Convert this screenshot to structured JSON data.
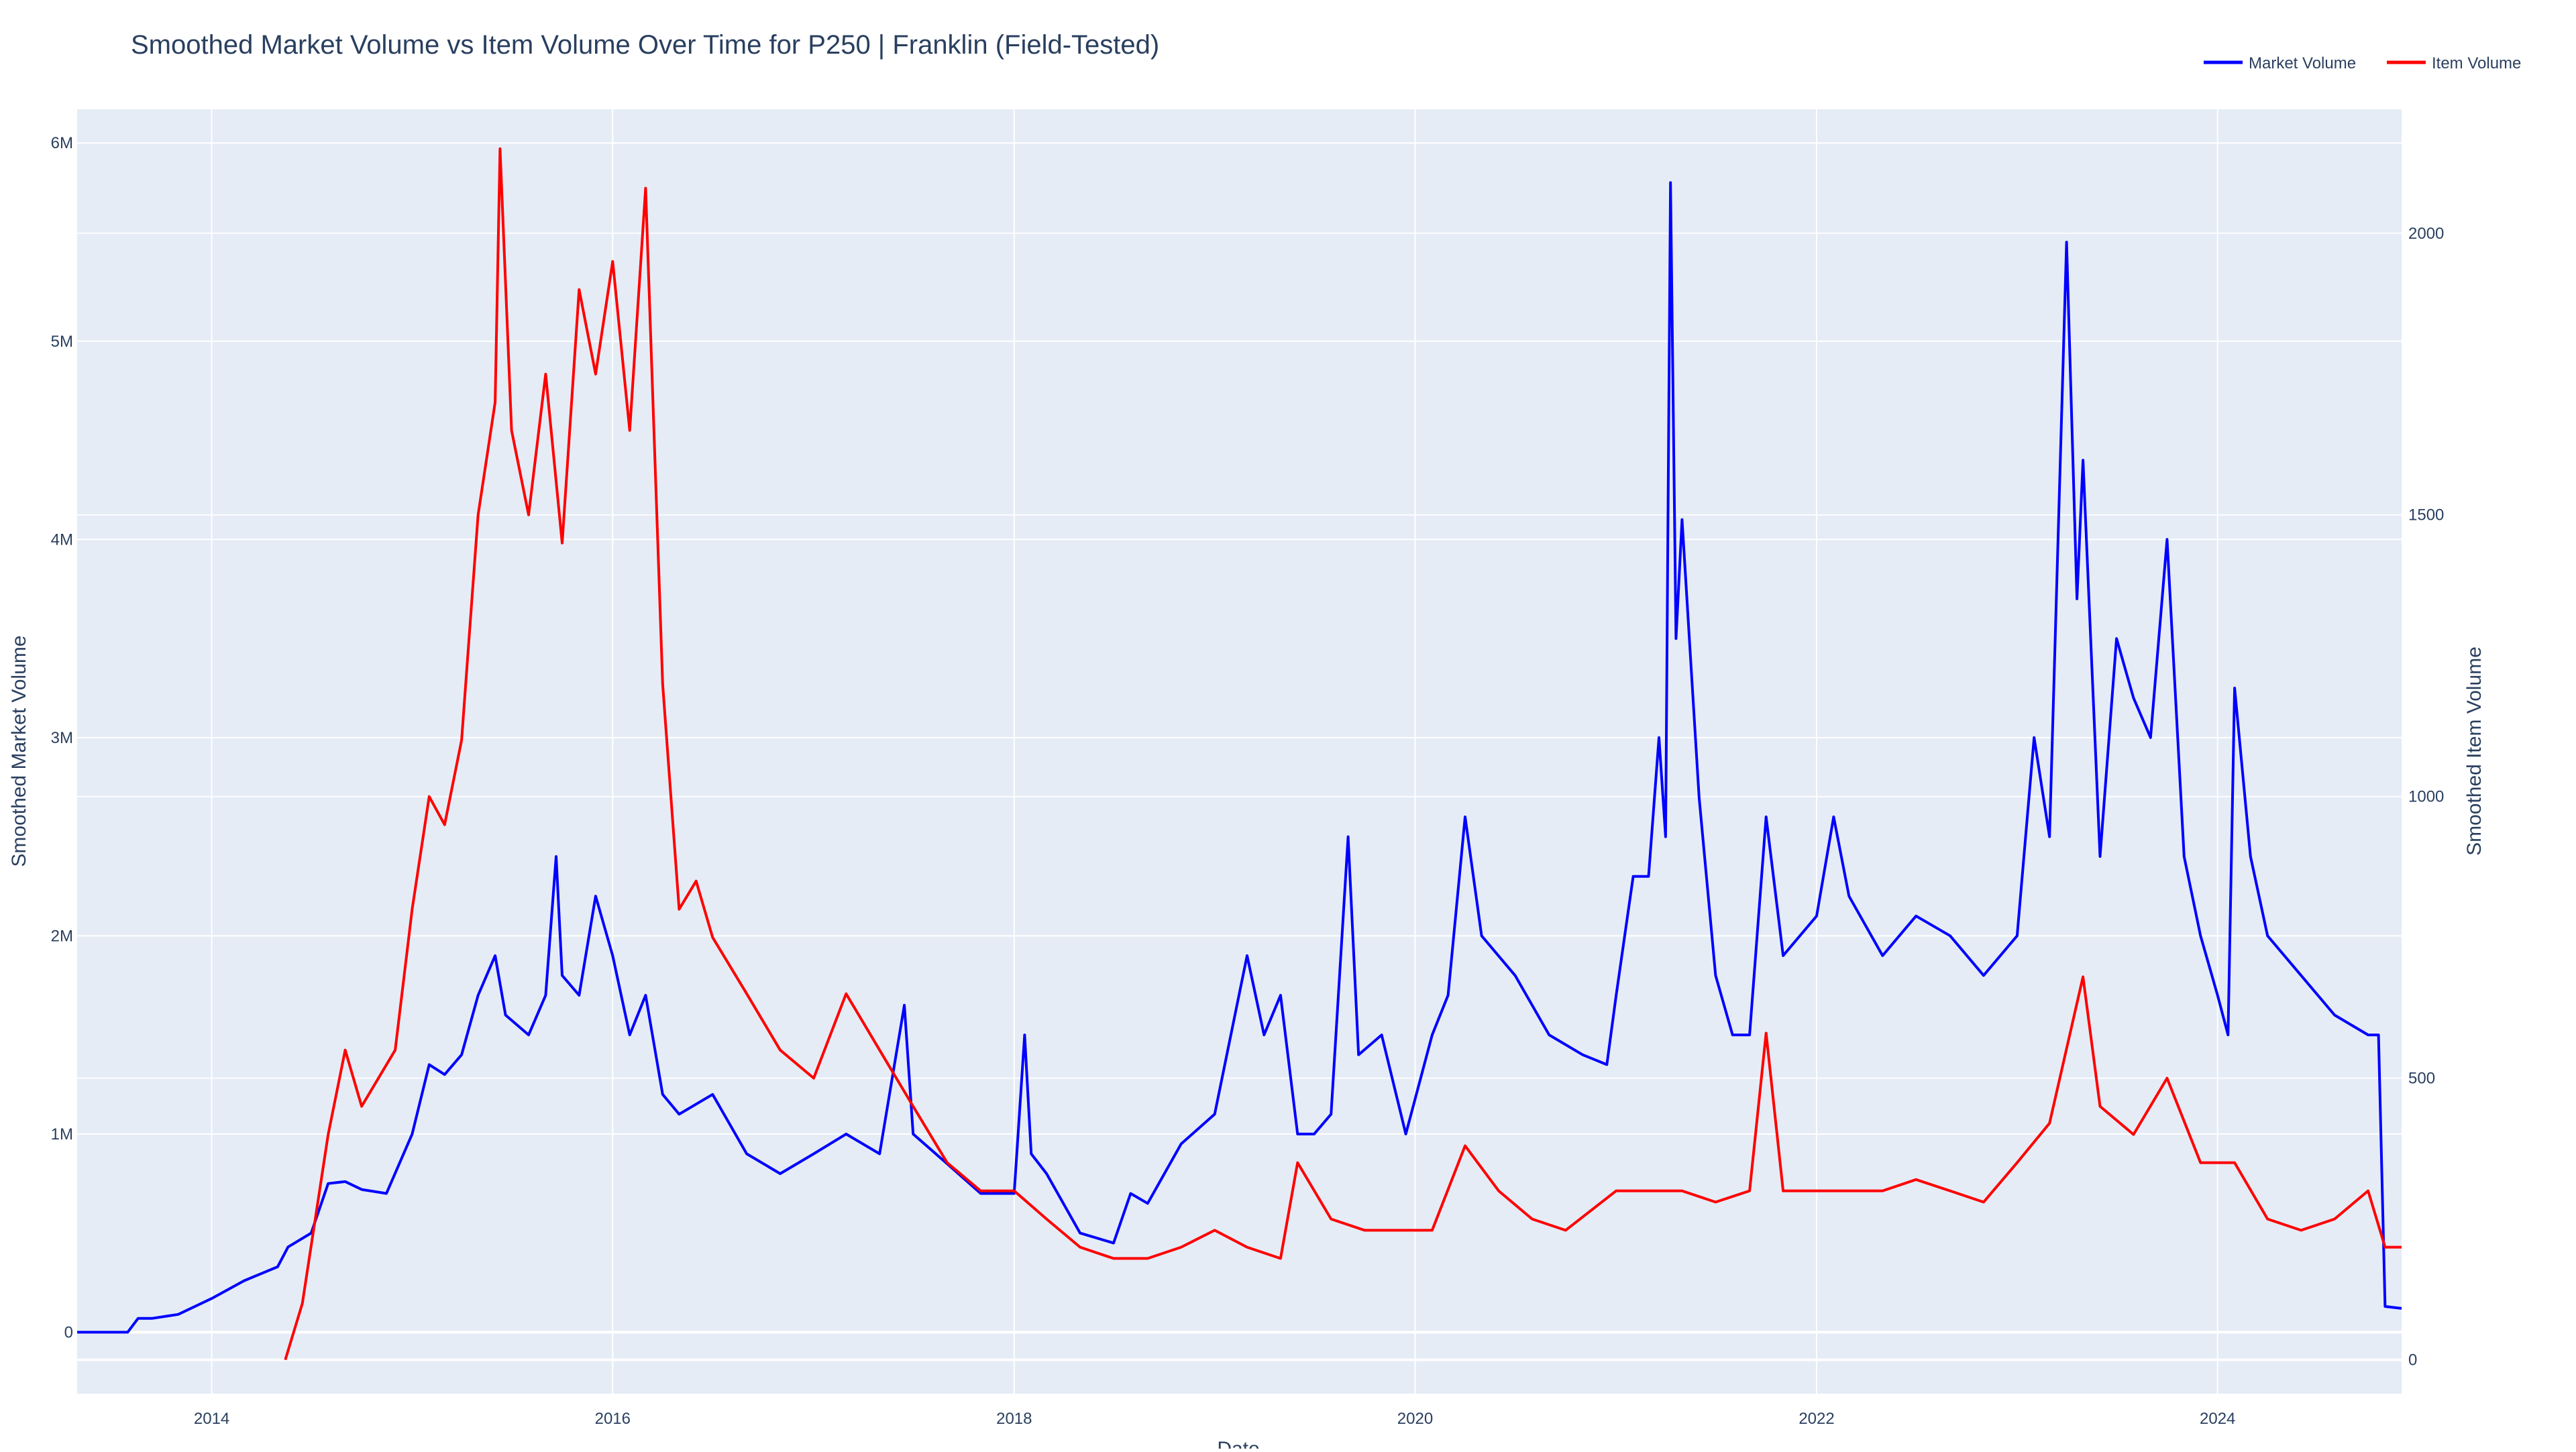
{
  "chart_data": {
    "type": "line",
    "title": "Smoothed Market Volume vs Item Volume Over Time for P250 | Franklin (Field-Tested)",
    "xlabel": "Date",
    "ylabel": "Smoothed Market Volume",
    "y2label": "Smoothed Item Volume",
    "x_ticks": [
      "2014",
      "2016",
      "2018",
      "2020",
      "2022",
      "2024"
    ],
    "y_ticks": [
      "0",
      "1M",
      "2M",
      "3M",
      "4M",
      "5M",
      "6M"
    ],
    "y2_ticks": [
      "0",
      "500",
      "1000",
      "1500",
      "2000"
    ],
    "xlim": [
      "2013-05-01",
      "2024-12-01"
    ],
    "ylim": [
      -310000,
      6170000
    ],
    "y2lim": [
      -60,
      2220
    ],
    "grid": true,
    "legend_position": "top-right",
    "background_color": "#e5ecf6",
    "series": [
      {
        "name": "Market Volume",
        "axis": "left",
        "color": "#0000ff",
        "points": [
          [
            "2013-05-01",
            0
          ],
          [
            "2013-08-01",
            0
          ],
          [
            "2013-08-20",
            70000
          ],
          [
            "2013-09-15",
            70000
          ],
          [
            "2013-11-01",
            90000
          ],
          [
            "2014-01-01",
            170000
          ],
          [
            "2014-03-01",
            260000
          ],
          [
            "2014-05-01",
            330000
          ],
          [
            "2014-05-20",
            430000
          ],
          [
            "2014-07-01",
            500000
          ],
          [
            "2014-08-01",
            750000
          ],
          [
            "2014-09-01",
            760000
          ],
          [
            "2014-10-01",
            720000
          ],
          [
            "2014-11-15",
            700000
          ],
          [
            "2015-01-01",
            1000000
          ],
          [
            "2015-02-01",
            1350000
          ],
          [
            "2015-03-01",
            1300000
          ],
          [
            "2015-04-01",
            1400000
          ],
          [
            "2015-05-01",
            1700000
          ],
          [
            "2015-06-01",
            1900000
          ],
          [
            "2015-06-20",
            1600000
          ],
          [
            "2015-08-01",
            1500000
          ],
          [
            "2015-09-01",
            1700000
          ],
          [
            "2015-09-20",
            2400000
          ],
          [
            "2015-10-01",
            1800000
          ],
          [
            "2015-11-01",
            1700000
          ],
          [
            "2015-12-01",
            2200000
          ],
          [
            "2016-01-01",
            1900000
          ],
          [
            "2016-02-01",
            1500000
          ],
          [
            "2016-03-01",
            1700000
          ],
          [
            "2016-04-01",
            1200000
          ],
          [
            "2016-05-01",
            1100000
          ],
          [
            "2016-07-01",
            1200000
          ],
          [
            "2016-09-01",
            900000
          ],
          [
            "2016-11-01",
            800000
          ],
          [
            "2017-01-01",
            900000
          ],
          [
            "2017-03-01",
            1000000
          ],
          [
            "2017-05-01",
            900000
          ],
          [
            "2017-06-15",
            1650000
          ],
          [
            "2017-07-01",
            1000000
          ],
          [
            "2017-09-01",
            850000
          ],
          [
            "2017-11-01",
            700000
          ],
          [
            "2018-01-01",
            700000
          ],
          [
            "2018-01-20",
            1500000
          ],
          [
            "2018-02-01",
            900000
          ],
          [
            "2018-03-01",
            800000
          ],
          [
            "2018-05-01",
            500000
          ],
          [
            "2018-07-01",
            450000
          ],
          [
            "2018-08-01",
            700000
          ],
          [
            "2018-09-01",
            650000
          ],
          [
            "2018-11-01",
            950000
          ],
          [
            "2019-01-01",
            1100000
          ],
          [
            "2019-03-01",
            1900000
          ],
          [
            "2019-04-01",
            1500000
          ],
          [
            "2019-05-01",
            1700000
          ],
          [
            "2019-06-01",
            1000000
          ],
          [
            "2019-07-01",
            1000000
          ],
          [
            "2019-08-01",
            1100000
          ],
          [
            "2019-09-01",
            2500000
          ],
          [
            "2019-09-20",
            1400000
          ],
          [
            "2019-11-01",
            1500000
          ],
          [
            "2019-12-15",
            1000000
          ],
          [
            "2020-02-01",
            1500000
          ],
          [
            "2020-03-01",
            1700000
          ],
          [
            "2020-04-01",
            2600000
          ],
          [
            "2020-05-01",
            2000000
          ],
          [
            "2020-07-01",
            1800000
          ],
          [
            "2020-09-01",
            1500000
          ],
          [
            "2020-11-01",
            1400000
          ],
          [
            "2020-12-15",
            1350000
          ],
          [
            "2021-01-01",
            1700000
          ],
          [
            "2021-02-01",
            2300000
          ],
          [
            "2021-03-01",
            2300000
          ],
          [
            "2021-03-20",
            3000000
          ],
          [
            "2021-04-01",
            2500000
          ],
          [
            "2021-04-10",
            5800000
          ],
          [
            "2021-04-20",
            3500000
          ],
          [
            "2021-05-01",
            4100000
          ],
          [
            "2021-06-01",
            2700000
          ],
          [
            "2021-07-01",
            1800000
          ],
          [
            "2021-08-01",
            1500000
          ],
          [
            "2021-09-01",
            1500000
          ],
          [
            "2021-10-01",
            2600000
          ],
          [
            "2021-11-01",
            1900000
          ],
          [
            "2022-01-01",
            2100000
          ],
          [
            "2022-02-01",
            2600000
          ],
          [
            "2022-03-01",
            2200000
          ],
          [
            "2022-05-01",
            1900000
          ],
          [
            "2022-07-01",
            2100000
          ],
          [
            "2022-09-01",
            2000000
          ],
          [
            "2022-11-01",
            1800000
          ],
          [
            "2023-01-01",
            2000000
          ],
          [
            "2023-02-01",
            3000000
          ],
          [
            "2023-03-01",
            2500000
          ],
          [
            "2023-04-01",
            5500000
          ],
          [
            "2023-04-20",
            3700000
          ],
          [
            "2023-05-01",
            4400000
          ],
          [
            "2023-06-01",
            2400000
          ],
          [
            "2023-07-01",
            3500000
          ],
          [
            "2023-08-01",
            3200000
          ],
          [
            "2023-09-01",
            3000000
          ],
          [
            "2023-10-01",
            4000000
          ],
          [
            "2023-11-01",
            2400000
          ],
          [
            "2023-12-01",
            2000000
          ],
          [
            "2024-01-01",
            1700000
          ],
          [
            "2024-01-20",
            1500000
          ],
          [
            "2024-02-01",
            3250000
          ],
          [
            "2024-03-01",
            2400000
          ],
          [
            "2024-04-01",
            2000000
          ],
          [
            "2024-06-01",
            1800000
          ],
          [
            "2024-08-01",
            1600000
          ],
          [
            "2024-10-01",
            1500000
          ],
          [
            "2024-10-20",
            1500000
          ],
          [
            "2024-11-01",
            130000
          ],
          [
            "2024-12-01",
            120000
          ]
        ]
      },
      {
        "name": "Item Volume",
        "axis": "right",
        "color": "#ff0000",
        "points": [
          [
            "2014-05-15",
            0
          ],
          [
            "2014-06-15",
            100
          ],
          [
            "2014-08-01",
            400
          ],
          [
            "2014-09-01",
            550
          ],
          [
            "2014-10-01",
            450
          ],
          [
            "2014-12-01",
            550
          ],
          [
            "2015-01-01",
            800
          ],
          [
            "2015-02-01",
            1000
          ],
          [
            "2015-03-01",
            950
          ],
          [
            "2015-04-01",
            1100
          ],
          [
            "2015-05-01",
            1500
          ],
          [
            "2015-06-01",
            1700
          ],
          [
            "2015-06-10",
            2150
          ],
          [
            "2015-07-01",
            1650
          ],
          [
            "2015-08-01",
            1500
          ],
          [
            "2015-09-01",
            1750
          ],
          [
            "2015-10-01",
            1450
          ],
          [
            "2015-11-01",
            1900
          ],
          [
            "2015-12-01",
            1750
          ],
          [
            "2016-01-01",
            1950
          ],
          [
            "2016-02-01",
            1650
          ],
          [
            "2016-03-01",
            2080
          ],
          [
            "2016-04-01",
            1200
          ],
          [
            "2016-05-01",
            800
          ],
          [
            "2016-06-01",
            850
          ],
          [
            "2016-07-01",
            750
          ],
          [
            "2016-09-01",
            650
          ],
          [
            "2016-11-01",
            550
          ],
          [
            "2017-01-01",
            500
          ],
          [
            "2017-03-01",
            650
          ],
          [
            "2017-05-01",
            550
          ],
          [
            "2017-07-01",
            450
          ],
          [
            "2017-09-01",
            350
          ],
          [
            "2017-11-01",
            300
          ],
          [
            "2018-01-01",
            300
          ],
          [
            "2018-03-01",
            250
          ],
          [
            "2018-05-01",
            200
          ],
          [
            "2018-07-01",
            180
          ],
          [
            "2018-09-01",
            180
          ],
          [
            "2018-11-01",
            200
          ],
          [
            "2019-01-01",
            230
          ],
          [
            "2019-03-01",
            200
          ],
          [
            "2019-05-01",
            180
          ],
          [
            "2019-06-01",
            350
          ],
          [
            "2019-08-01",
            250
          ],
          [
            "2019-10-01",
            230
          ],
          [
            "2019-12-01",
            230
          ],
          [
            "2020-02-01",
            230
          ],
          [
            "2020-04-01",
            380
          ],
          [
            "2020-06-01",
            300
          ],
          [
            "2020-08-01",
            250
          ],
          [
            "2020-10-01",
            230
          ],
          [
            "2021-01-01",
            300
          ],
          [
            "2021-03-01",
            300
          ],
          [
            "2021-05-01",
            300
          ],
          [
            "2021-07-01",
            280
          ],
          [
            "2021-09-01",
            300
          ],
          [
            "2021-10-01",
            580
          ],
          [
            "2021-11-01",
            300
          ],
          [
            "2022-01-01",
            300
          ],
          [
            "2022-03-01",
            300
          ],
          [
            "2022-05-01",
            300
          ],
          [
            "2022-07-01",
            320
          ],
          [
            "2022-09-01",
            300
          ],
          [
            "2022-11-01",
            280
          ],
          [
            "2023-01-01",
            350
          ],
          [
            "2023-03-01",
            420
          ],
          [
            "2023-05-01",
            680
          ],
          [
            "2023-06-01",
            450
          ],
          [
            "2023-08-01",
            400
          ],
          [
            "2023-10-01",
            500
          ],
          [
            "2023-12-01",
            350
          ],
          [
            "2024-02-01",
            350
          ],
          [
            "2024-04-01",
            250
          ],
          [
            "2024-06-01",
            230
          ],
          [
            "2024-08-01",
            250
          ],
          [
            "2024-10-01",
            300
          ],
          [
            "2024-11-01",
            200
          ],
          [
            "2024-12-01",
            200
          ]
        ]
      }
    ]
  }
}
